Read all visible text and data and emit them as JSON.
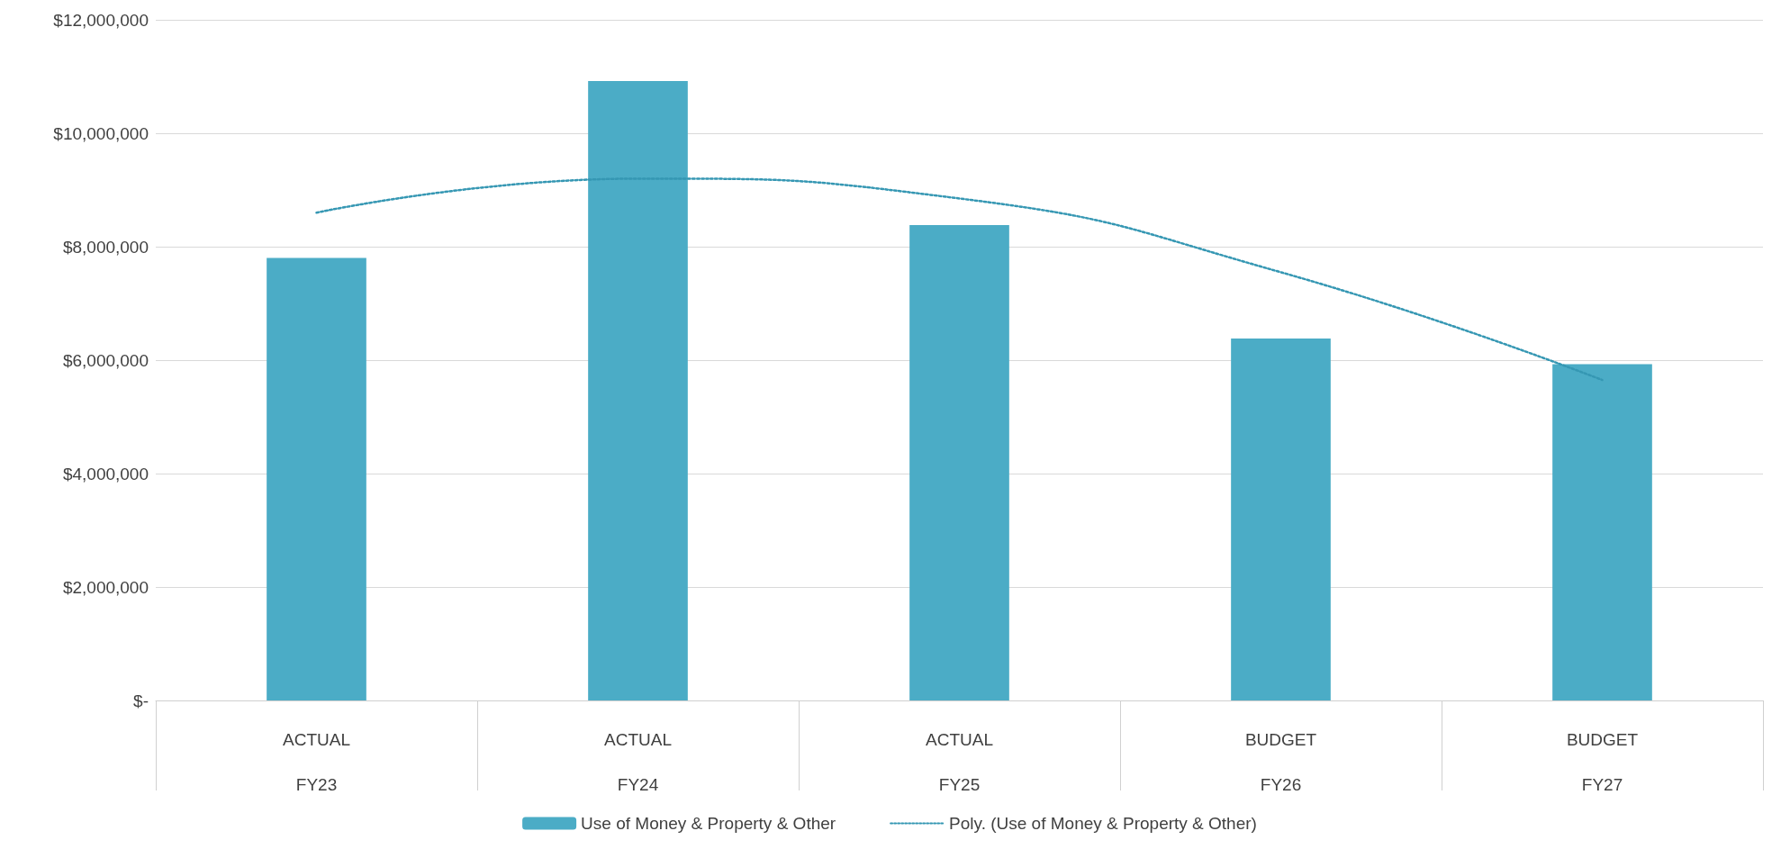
{
  "chart_data": {
    "type": "bar",
    "categories": [
      "ACTUAL\nFY23",
      "ACTUAL\nFY24",
      "ACTUAL\nFY25",
      "BUDGET\nFY26",
      "BUDGET\nFY27"
    ],
    "series": [
      {
        "name": "Use of Money & Property & Other",
        "color": "#4bacc6",
        "values": [
          7800000,
          10920000,
          8380000,
          6380000,
          5930000
        ]
      },
      {
        "name": "Poly. (Use of Money & Property & Other)",
        "type": "line",
        "color": "#3597b3",
        "line_style": "dotted",
        "marker": "none",
        "values": [
          8600000,
          9200000,
          8850000,
          7550000,
          5650000
        ]
      }
    ],
    "ylim": [
      0,
      12000000
    ],
    "yticks": [
      {
        "value": 0,
        "label": "$-"
      },
      {
        "value": 2000000,
        "label": "$2,000,000"
      },
      {
        "value": 4000000,
        "label": "$4,000,000"
      },
      {
        "value": 6000000,
        "label": "$6,000,000"
      },
      {
        "value": 8000000,
        "label": "$8,000,000"
      },
      {
        "value": 10000000,
        "label": "$10,000,000"
      },
      {
        "value": 12000000,
        "label": "$12,000,000"
      }
    ],
    "grid": "y",
    "legend": "bottom"
  }
}
